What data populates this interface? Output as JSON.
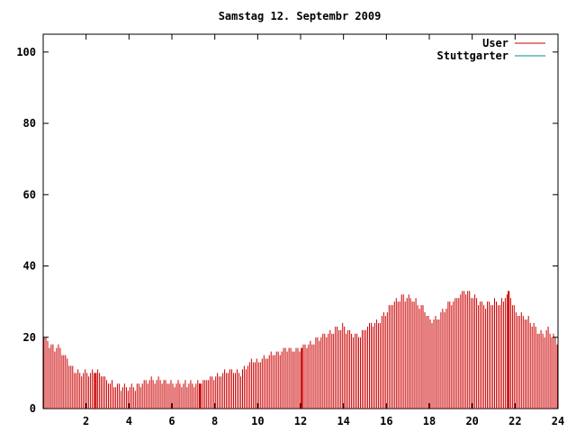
{
  "chart_data": {
    "type": "bar",
    "title": "Samstag 12. Septembr 2009",
    "xlabel": "",
    "ylabel": "",
    "xlim": [
      0,
      24
    ],
    "ylim": [
      0,
      105
    ],
    "x_ticks": [
      2,
      4,
      6,
      8,
      10,
      12,
      14,
      16,
      18,
      20,
      22,
      24
    ],
    "y_ticks": [
      0,
      20,
      40,
      60,
      80,
      100
    ],
    "grid": false,
    "legend_position": "top-right",
    "series": [
      {
        "name": "User",
        "color": "#cc0000",
        "points": [
          [
            0.05,
            20
          ],
          [
            0.3,
            18
          ],
          [
            0.5,
            17
          ],
          [
            0.7,
            17
          ],
          [
            0.85,
            16
          ],
          [
            1.0,
            15
          ],
          [
            1.2,
            13
          ],
          [
            1.4,
            11
          ],
          [
            1.6,
            10
          ],
          [
            1.8,
            10
          ],
          [
            2.0,
            10
          ],
          [
            2.3,
            10
          ],
          [
            2.6,
            10
          ],
          [
            2.8,
            9
          ],
          [
            3.0,
            8
          ],
          [
            3.2,
            7
          ],
          [
            3.5,
            6
          ],
          [
            3.8,
            6
          ],
          [
            4.0,
            6
          ],
          [
            4.3,
            6
          ],
          [
            4.6,
            7
          ],
          [
            4.8,
            8
          ],
          [
            5.0,
            8
          ],
          [
            5.5,
            8
          ],
          [
            6.0,
            7
          ],
          [
            6.5,
            7
          ],
          [
            7.0,
            7
          ],
          [
            7.3,
            7
          ],
          [
            7.6,
            8
          ],
          [
            8.0,
            9
          ],
          [
            8.4,
            10
          ],
          [
            8.8,
            11
          ],
          [
            9.2,
            10
          ],
          [
            9.5,
            12
          ],
          [
            9.8,
            14
          ],
          [
            10.0,
            13
          ],
          [
            10.3,
            14
          ],
          [
            10.6,
            15
          ],
          [
            11.0,
            16
          ],
          [
            11.3,
            17
          ],
          [
            11.6,
            16
          ],
          [
            12.0,
            17
          ],
          [
            12.3,
            18
          ],
          [
            12.6,
            19
          ],
          [
            13.0,
            20
          ],
          [
            13.3,
            21
          ],
          [
            13.6,
            22
          ],
          [
            14.0,
            23
          ],
          [
            14.3,
            21
          ],
          [
            14.6,
            20
          ],
          [
            15.0,
            22
          ],
          [
            15.3,
            24
          ],
          [
            15.6,
            24
          ],
          [
            16.0,
            27
          ],
          [
            16.3,
            30
          ],
          [
            16.6,
            31
          ],
          [
            17.0,
            31
          ],
          [
            17.3,
            30
          ],
          [
            17.6,
            29
          ],
          [
            18.0,
            25
          ],
          [
            18.3,
            25
          ],
          [
            18.6,
            27
          ],
          [
            19.0,
            30
          ],
          [
            19.3,
            31
          ],
          [
            19.6,
            33
          ],
          [
            20.0,
            32
          ],
          [
            20.3,
            30
          ],
          [
            20.6,
            29
          ],
          [
            21.0,
            30
          ],
          [
            21.3,
            29
          ],
          [
            21.6,
            32
          ],
          [
            21.8,
            31
          ],
          [
            22.0,
            27
          ],
          [
            22.3,
            26
          ],
          [
            22.6,
            25
          ],
          [
            23.0,
            22
          ],
          [
            23.3,
            21
          ],
          [
            23.6,
            22
          ],
          [
            23.9,
            19
          ],
          [
            24.0,
            18
          ]
        ]
      },
      {
        "name": "Stuttgarter",
        "color": "#008b8b",
        "points": []
      }
    ],
    "highlight_bars": [
      {
        "x": 2.45,
        "value": 10
      },
      {
        "x": 7.3,
        "value": 7
      },
      {
        "x": 12.05,
        "value": 17
      },
      {
        "x": 21.7,
        "value": 33
      }
    ]
  }
}
